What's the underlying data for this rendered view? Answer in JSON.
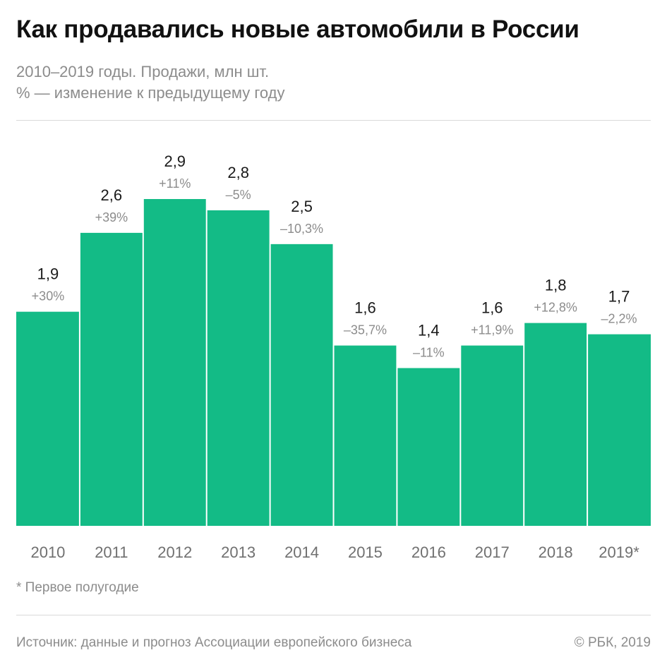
{
  "header": {
    "title": "Как продавались новые автомобили в России",
    "subtitle_line1": "2010–2019 годы. Продажи, млн шт.",
    "subtitle_line2": "% — изменение к предыдущему году"
  },
  "footer": {
    "footnote": "* Первое полугодие",
    "source": "Источник: данные и прогноз Ассоциации европейского бизнеса",
    "copyright": "© РБК, 2019"
  },
  "colors": {
    "bar": "#13bb86",
    "value_label": "#1a1a1a",
    "change_label": "#8c8c8c",
    "axis_label": "#707070"
  },
  "chart_data": {
    "type": "bar",
    "title": "Как продавались новые автомобили в России",
    "subtitle": "2010–2019 годы. Продажи, млн шт.",
    "xlabel": "",
    "ylabel": "",
    "categories": [
      "2010",
      "2011",
      "2012",
      "2013",
      "2014",
      "2015",
      "2016",
      "2017",
      "2018",
      "2019*"
    ],
    "values": [
      1.9,
      2.6,
      2.9,
      2.8,
      2.5,
      1.6,
      1.4,
      1.6,
      1.8,
      1.7
    ],
    "value_labels": [
      "1,9",
      "2,6",
      "2,9",
      "2,8",
      "2,5",
      "1,6",
      "1,4",
      "1,6",
      "1,8",
      "1,7"
    ],
    "change_labels": [
      "+30%",
      "+39%",
      "+11%",
      "–5%",
      "–10,3%",
      "–35,7%",
      "–11%",
      "+11,9%",
      "+12,8%",
      "–2,2%"
    ],
    "ylim": [
      0,
      2.9
    ],
    "grid": false,
    "legend": "none"
  }
}
